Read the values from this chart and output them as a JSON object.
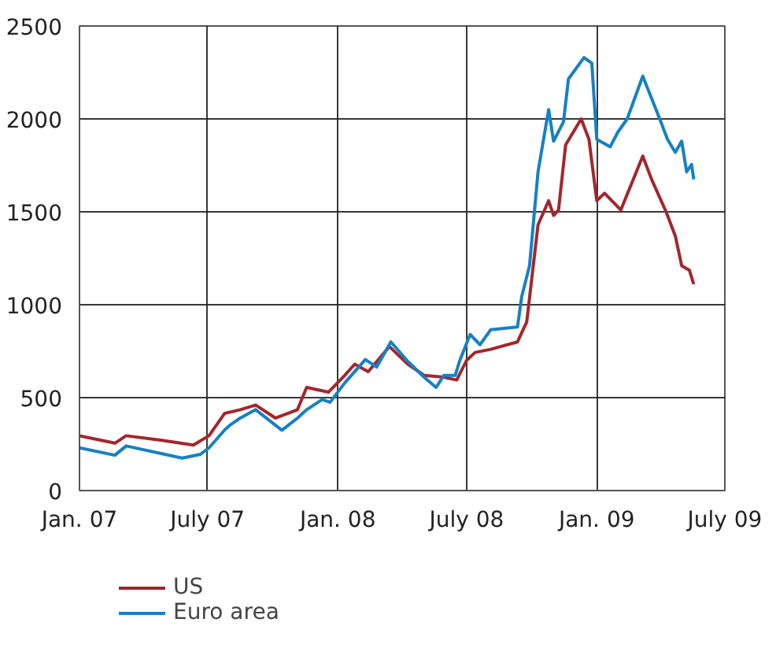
{
  "chart_data": {
    "type": "line",
    "legend": "bottom",
    "grid": true,
    "xlim": [
      "2007-01-01",
      "2009-07-01"
    ],
    "xticks": [
      {
        "value": "2007-01-01",
        "label": "Jan. 07"
      },
      {
        "value": "2007-07-01",
        "label": "July 07"
      },
      {
        "value": "2008-01-01",
        "label": "Jan. 08"
      },
      {
        "value": "2008-07-01",
        "label": "July 08"
      },
      {
        "value": "2009-01-01",
        "label": "Jan. 09"
      },
      {
        "value": "2009-07-01",
        "label": "July 09"
      }
    ],
    "ylim": [
      0,
      2500
    ],
    "yticks": [
      0,
      500,
      1000,
      1500,
      2000,
      2500
    ],
    "series": [
      {
        "name": "US",
        "color": "#a4262c",
        "x": [
          "2007-01-01",
          "2007-02-20",
          "2007-03-08",
          "2007-04-28",
          "2007-06-11",
          "2007-07-03",
          "2007-07-25",
          "2007-08-16",
          "2007-09-07",
          "2007-10-05",
          "2007-11-05",
          "2007-11-18",
          "2007-12-19",
          "2008-01-11",
          "2008-01-25",
          "2008-02-13",
          "2008-03-14",
          "2008-04-09",
          "2008-05-02",
          "2008-05-30",
          "2008-06-17",
          "2008-07-01",
          "2008-07-13",
          "2008-08-04",
          "2008-09-11",
          "2008-09-24",
          "2008-10-10",
          "2008-10-25",
          "2008-11-01",
          "2008-11-08",
          "2008-11-18",
          "2008-12-10",
          "2008-12-21",
          "2009-01-01",
          "2009-01-12",
          "2009-02-04",
          "2009-03-07",
          "2009-03-20",
          "2009-04-09",
          "2009-04-22",
          "2009-05-01",
          "2009-05-12",
          "2009-05-18"
        ],
        "values": [
          295,
          255,
          295,
          270,
          245,
          295,
          415,
          435,
          460,
          390,
          435,
          555,
          530,
          620,
          680,
          640,
          775,
          680,
          620,
          610,
          595,
          700,
          743,
          760,
          800,
          907,
          1430,
          1560,
          1480,
          1510,
          1860,
          2000,
          1890,
          1560,
          1600,
          1510,
          1800,
          1670,
          1500,
          1370,
          1210,
          1185,
          1110
        ]
      },
      {
        "name": "Euro area",
        "color": "#1581c5",
        "x": [
          "2007-01-01",
          "2007-02-20",
          "2007-03-08",
          "2007-05-26",
          "2007-06-21",
          "2007-07-03",
          "2007-07-25",
          "2007-08-01",
          "2007-08-16",
          "2007-09-07",
          "2007-10-14",
          "2007-11-05",
          "2007-11-18",
          "2007-12-10",
          "2007-12-21",
          "2008-01-11",
          "2008-02-09",
          "2008-02-25",
          "2008-03-16",
          "2008-04-09",
          "2008-05-02",
          "2008-05-19",
          "2008-05-30",
          "2008-06-15",
          "2008-06-21",
          "2008-07-06",
          "2008-07-20",
          "2008-08-04",
          "2008-09-11",
          "2008-09-17",
          "2008-09-28",
          "2008-10-10",
          "2008-10-25",
          "2008-11-01",
          "2008-11-15",
          "2008-11-22",
          "2008-12-14",
          "2008-12-25",
          "2009-01-01",
          "2009-01-20",
          "2009-01-31",
          "2009-02-13",
          "2009-03-07",
          "2009-03-30",
          "2009-04-11",
          "2009-04-22",
          "2009-05-01",
          "2009-05-08",
          "2009-05-15",
          "2009-05-18"
        ],
        "values": [
          230,
          190,
          240,
          175,
          195,
          230,
          325,
          350,
          390,
          435,
          325,
          390,
          435,
          490,
          475,
          580,
          705,
          665,
          800,
          695,
          610,
          555,
          620,
          620,
          695,
          840,
          785,
          865,
          880,
          1045,
          1210,
          1715,
          2050,
          1880,
          1985,
          2215,
          2330,
          2300,
          1890,
          1850,
          1930,
          2000,
          2230,
          2010,
          1890,
          1820,
          1880,
          1715,
          1755,
          1675
        ]
      }
    ]
  }
}
